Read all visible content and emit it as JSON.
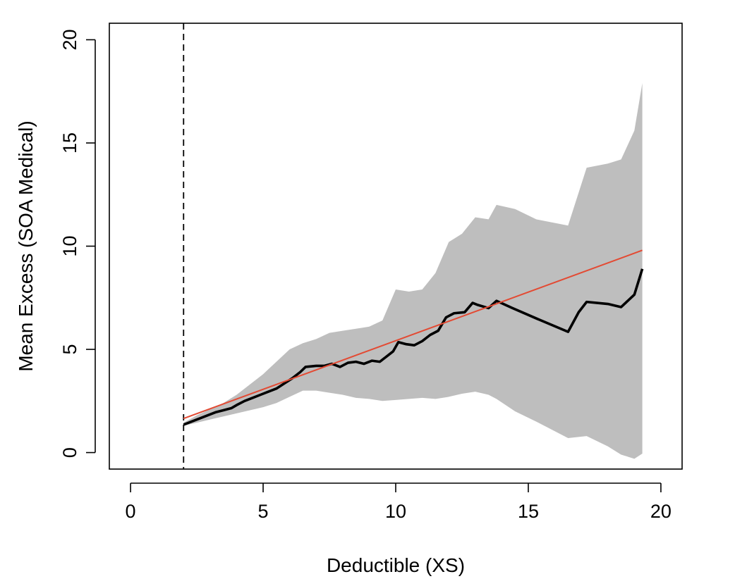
{
  "chart_data": {
    "type": "line",
    "title": "",
    "xlabel": "Deductible (XS)",
    "ylabel": "Mean Excess (SOA Medical)",
    "xlim": [
      -0.8,
      20.8
    ],
    "ylim": [
      -0.8,
      20.8
    ],
    "x_ticks": [
      0,
      5,
      10,
      15,
      20
    ],
    "y_ticks": [
      0,
      5,
      10,
      15,
      20
    ],
    "x_tick_labels": [
      "0",
      "5",
      "10",
      "15",
      "20"
    ],
    "y_tick_labels": [
      "0",
      "5",
      "10",
      "15",
      "20"
    ],
    "grid": false,
    "legend": "none",
    "colors": {
      "mean_excess": "#000000",
      "fit": "#e34a33",
      "band": "#bebebe",
      "threshold": "#000000"
    },
    "threshold_line": {
      "x": 2.0,
      "style": "dashed"
    },
    "band": {
      "x": [
        2.0,
        2.5,
        3.0,
        3.5,
        4.0,
        4.5,
        5.0,
        5.5,
        6.0,
        6.5,
        7.0,
        7.5,
        8.0,
        8.5,
        9.0,
        9.5,
        10.0,
        10.5,
        11.0,
        11.5,
        12.0,
        12.5,
        13.0,
        13.5,
        13.8,
        14.5,
        15.3,
        16.5,
        17.2,
        18.0,
        18.5,
        19.0,
        19.3
      ],
      "lower": [
        1.3,
        1.45,
        1.6,
        1.75,
        1.9,
        2.05,
        2.2,
        2.4,
        2.7,
        3.0,
        3.0,
        2.9,
        2.8,
        2.65,
        2.6,
        2.5,
        2.55,
        2.6,
        2.65,
        2.6,
        2.7,
        2.85,
        2.95,
        2.8,
        2.6,
        2.0,
        1.5,
        0.7,
        0.8,
        0.3,
        -0.1,
        -0.3,
        -0.05
      ],
      "upper": [
        1.45,
        1.8,
        2.1,
        2.4,
        2.8,
        3.3,
        3.8,
        4.4,
        5.0,
        5.3,
        5.5,
        5.8,
        5.9,
        6.0,
        6.1,
        6.4,
        7.9,
        7.8,
        7.9,
        8.7,
        10.2,
        10.6,
        11.4,
        11.3,
        12.0,
        11.8,
        11.3,
        11.0,
        13.8,
        14.0,
        14.2,
        15.6,
        17.9
      ]
    },
    "series": [
      {
        "x": [
          2.0,
          2.3,
          2.6,
          2.9,
          3.2,
          3.5,
          3.8,
          4.0,
          4.3,
          4.6,
          4.9,
          5.2,
          5.5,
          5.8,
          6.1,
          6.4,
          6.6,
          7.0,
          7.3,
          7.6,
          7.9,
          8.2,
          8.5,
          8.8,
          9.1,
          9.4,
          9.6,
          9.9,
          10.1,
          10.4,
          10.7,
          11.0,
          11.3,
          11.6,
          11.9,
          12.2,
          12.6,
          12.9,
          13.1,
          13.5,
          13.8,
          14.4,
          15.3,
          16.5,
          16.9,
          17.2,
          18.0,
          18.5,
          19.0,
          19.3
        ],
        "y": [
          1.35,
          1.5,
          1.65,
          1.8,
          1.95,
          2.05,
          2.15,
          2.3,
          2.5,
          2.65,
          2.8,
          2.95,
          3.1,
          3.35,
          3.6,
          3.9,
          4.15,
          4.2,
          4.2,
          4.3,
          4.15,
          4.35,
          4.4,
          4.3,
          4.45,
          4.4,
          4.6,
          4.9,
          5.35,
          5.25,
          5.2,
          5.4,
          5.7,
          5.9,
          6.55,
          6.75,
          6.8,
          7.25,
          7.15,
          7.0,
          7.35,
          7.0,
          6.5,
          5.85,
          6.8,
          7.3,
          7.2,
          7.05,
          7.65,
          8.9
        ]
      },
      {
        "x": [
          2.0,
          19.3
        ],
        "y": [
          1.65,
          9.8
        ]
      }
    ]
  }
}
